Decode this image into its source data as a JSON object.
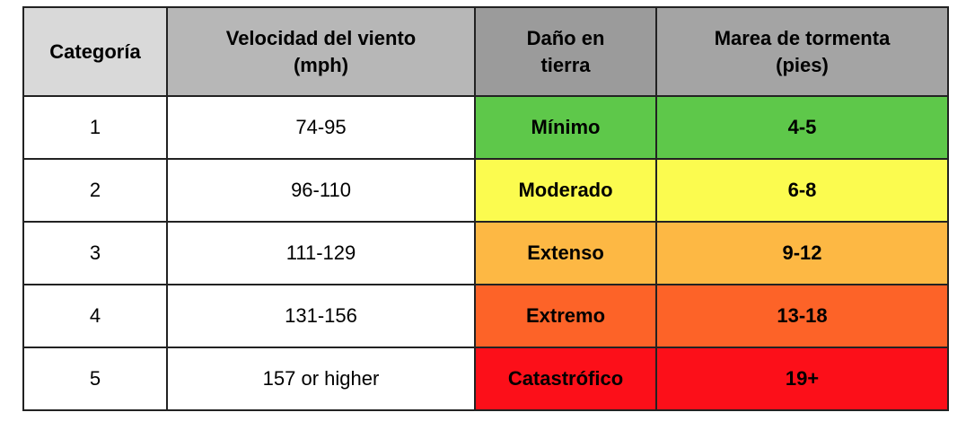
{
  "headers": [
    [
      "Categoría"
    ],
    [
      "Velocidad del viento",
      "(mph)"
    ],
    [
      "Daño en",
      "tierra"
    ],
    [
      "Marea de tormenta",
      "(pies)"
    ]
  ],
  "colors": {
    "header_categoria": "#d9d9d9",
    "header_viento": "#b7b7b7",
    "header_dano": "#9b9b9b",
    "header_marea": "#a4a4a4",
    "border": "#222222"
  },
  "rows": [
    {
      "category": "1",
      "wind": "74-95",
      "damage": "Mínimo",
      "surge": "4-5",
      "color": "#5ec84a"
    },
    {
      "category": "2",
      "wind": "96-110",
      "damage": "Moderado",
      "surge": "6-8",
      "color": "#fbfb4f"
    },
    {
      "category": "3",
      "wind": "111-129",
      "damage": "Extenso",
      "surge": "9-12",
      "color": "#fdb844"
    },
    {
      "category": "4",
      "wind": "131-156",
      "damage": "Extremo",
      "surge": "13-18",
      "color": "#fd6328"
    },
    {
      "category": "5",
      "wind": "157 or higher",
      "damage": "Catastrófico",
      "surge": "19+",
      "color": "#fc0f19"
    }
  ]
}
